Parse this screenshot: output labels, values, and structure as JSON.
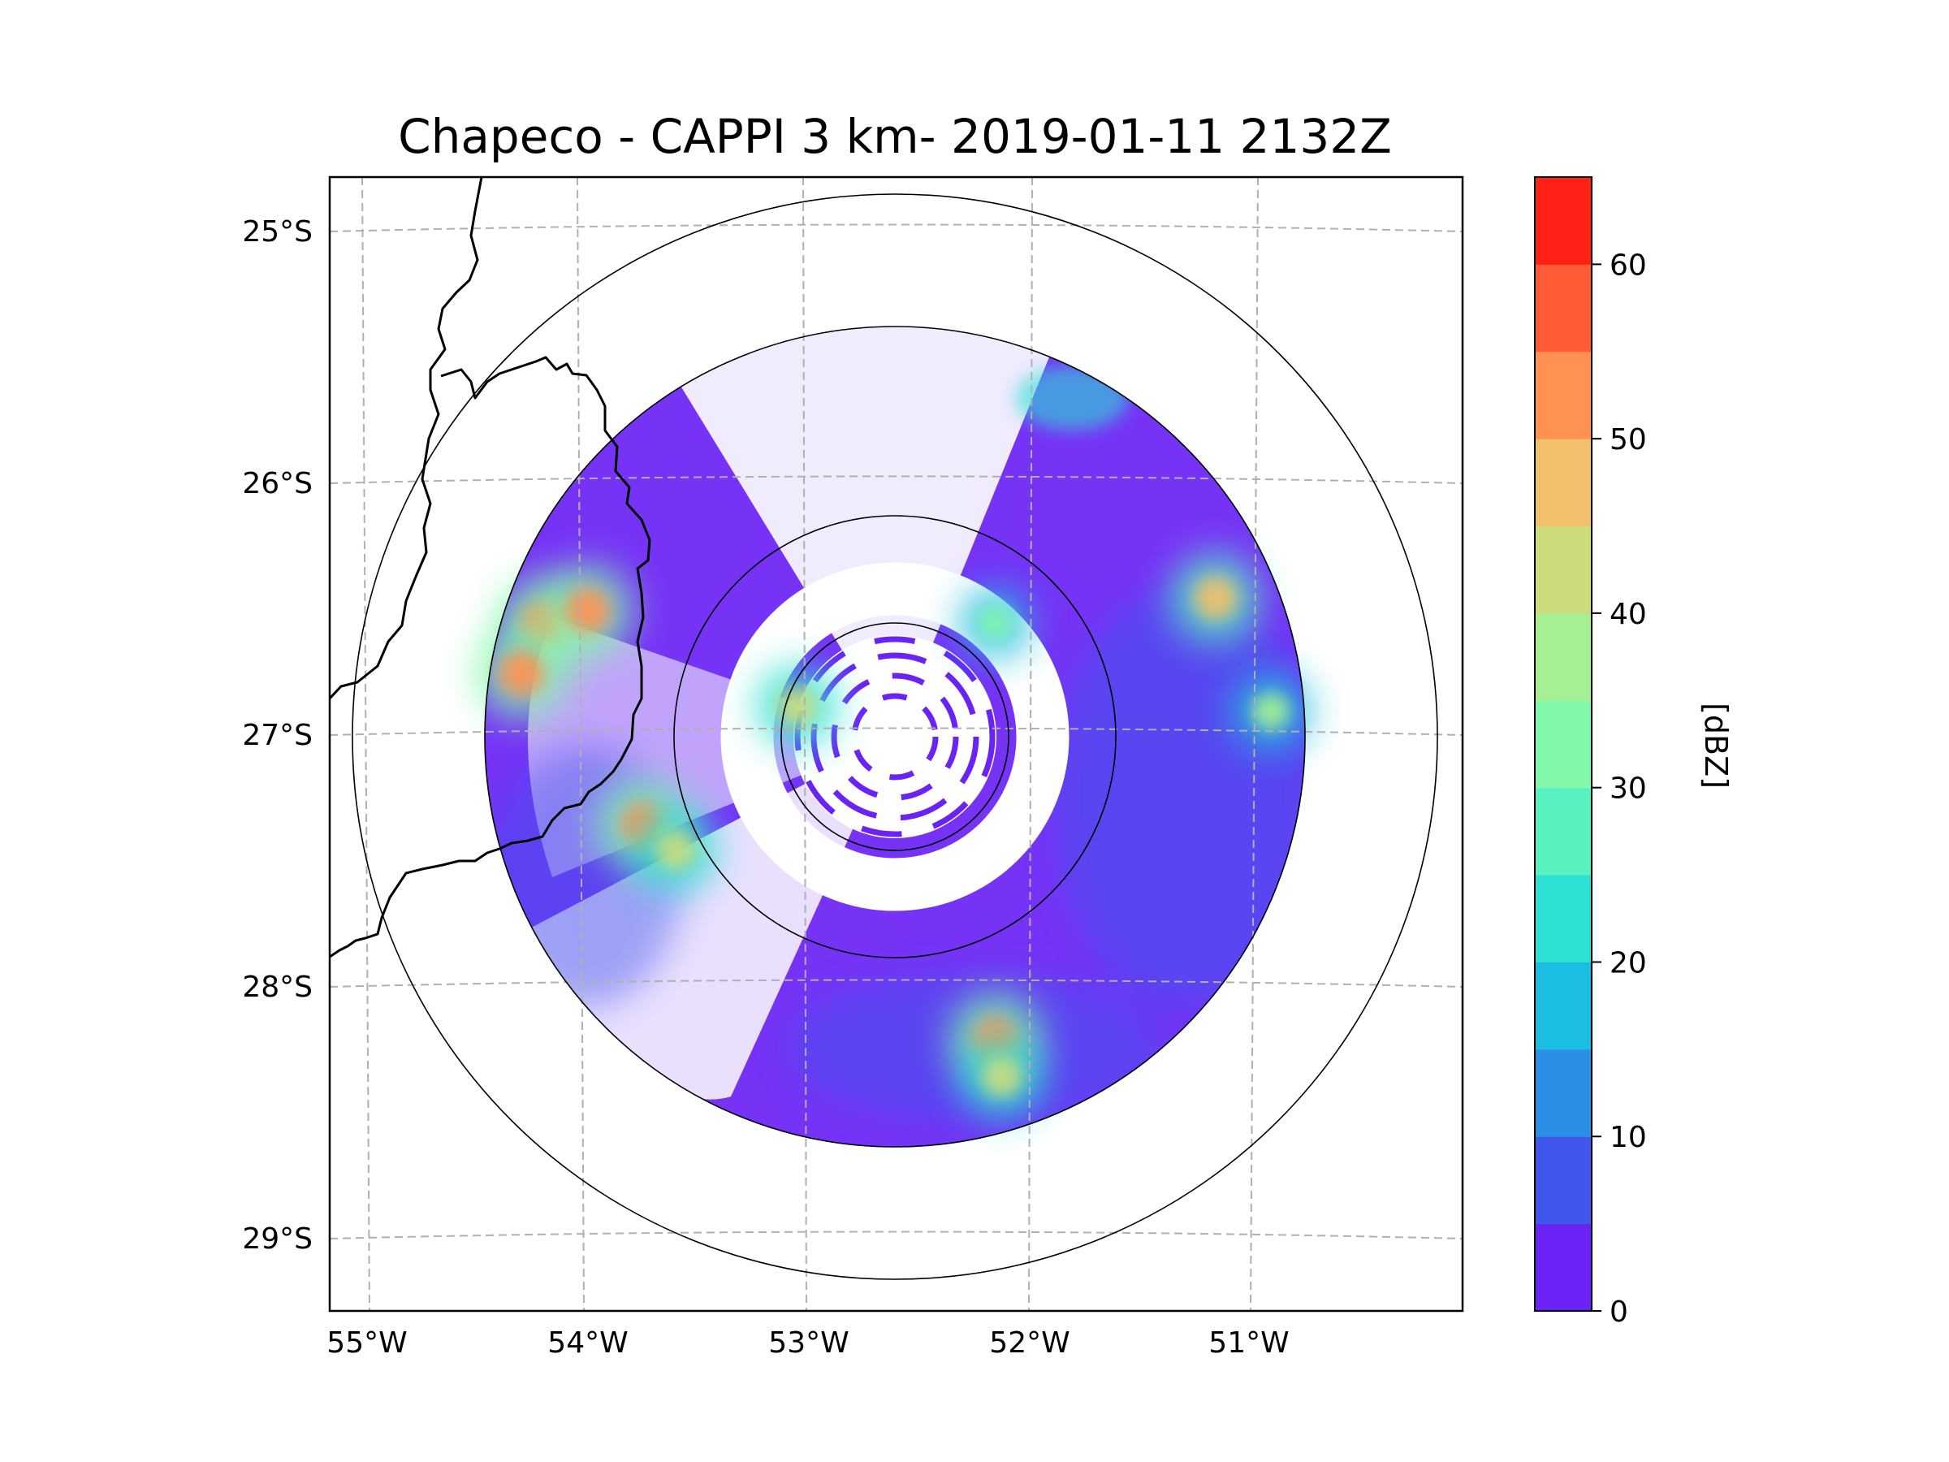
{
  "chart_data": {
    "type": "heatmap",
    "title": "Chapeco - CAPPI 3 km- 2019-01-11 2132Z",
    "radar": {
      "site": "Chapeco",
      "product": "CAPPI 3 km",
      "datetime": "2019-01-11 2132Z",
      "center_lon": -52.6,
      "center_lat": -27.05
    },
    "x_ticks": [
      {
        "value": -55,
        "label": "55°W"
      },
      {
        "value": -54,
        "label": "54°W"
      },
      {
        "value": -53,
        "label": "53°W"
      },
      {
        "value": -52,
        "label": "52°W"
      },
      {
        "value": -51,
        "label": "51°W"
      }
    ],
    "y_ticks": [
      {
        "value": -25,
        "label": "25°S"
      },
      {
        "value": -26,
        "label": "26°S"
      },
      {
        "value": -27,
        "label": "27°S"
      },
      {
        "value": -28,
        "label": "28°S"
      },
      {
        "value": -29,
        "label": "29°S"
      }
    ],
    "xlim": [
      -55.17,
      -50.03
    ],
    "ylim": [
      -29.28,
      -24.78
    ],
    "range_rings_deg": [
      0.5,
      1.0,
      1.85,
      2.45
    ],
    "colorbar": {
      "label": "[dBZ]",
      "min": 0,
      "max": 65,
      "ticks": [
        0,
        10,
        20,
        30,
        40,
        50,
        60
      ],
      "levels": [
        0,
        5,
        10,
        15,
        20,
        25,
        30,
        35,
        40,
        45,
        50,
        55,
        60,
        65
      ],
      "colors": [
        "#6a22f5",
        "#4157ec",
        "#2b8fe6",
        "#1bbde0",
        "#2ce0d3",
        "#58f2c0",
        "#82f8aa",
        "#a6ef93",
        "#cddb7d",
        "#f0c06c",
        "#ff9252",
        "#ff5b36",
        "#ff2016"
      ]
    },
    "echo_cells": [
      {
        "lon": -54.2,
        "lat": -26.55,
        "dbz": 50
      },
      {
        "lon": -54.0,
        "lat": -26.5,
        "dbz": 50
      },
      {
        "lon": -54.3,
        "lat": -26.75,
        "dbz": 50
      },
      {
        "lon": -53.75,
        "lat": -27.35,
        "dbz": 50
      },
      {
        "lon": -53.6,
        "lat": -27.45,
        "dbz": 42
      },
      {
        "lon": -52.15,
        "lat": -28.2,
        "dbz": 50
      },
      {
        "lon": -52.12,
        "lat": -28.35,
        "dbz": 42
      },
      {
        "lon": -51.15,
        "lat": -26.45,
        "dbz": 48
      },
      {
        "lon": -50.9,
        "lat": -26.9,
        "dbz": 38
      },
      {
        "lon": -53.05,
        "lat": -26.88,
        "dbz": 40
      },
      {
        "lon": -52.15,
        "lat": -26.55,
        "dbz": 30
      }
    ]
  }
}
